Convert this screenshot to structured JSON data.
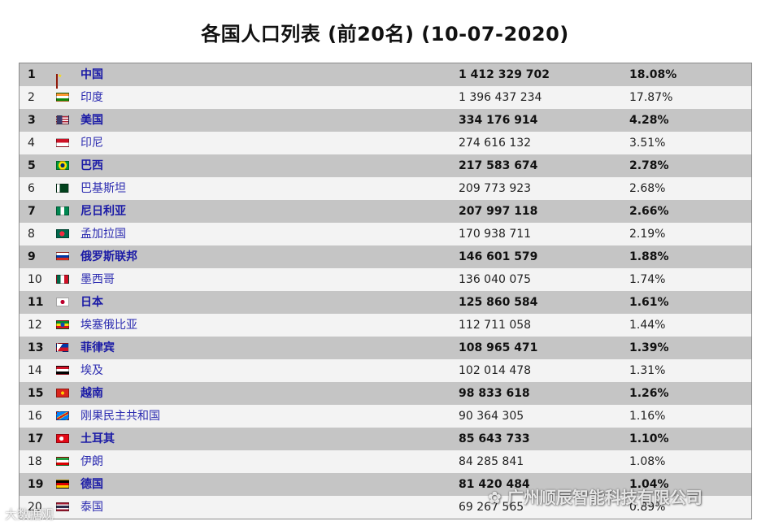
{
  "title": "各国人口列表 (前20名) (10-07-2020)",
  "rows": [
    {
      "rank": "1",
      "name": "中国",
      "population": "1 412 329 702",
      "percent": "18.08%",
      "flag": "cn"
    },
    {
      "rank": "2",
      "name": "印度",
      "population": "1 396 437 234",
      "percent": "17.87%",
      "flag": "in"
    },
    {
      "rank": "3",
      "name": "美国",
      "population": "334 176 914",
      "percent": "4.28%",
      "flag": "us"
    },
    {
      "rank": "4",
      "name": "印尼",
      "population": "274 616 132",
      "percent": "3.51%",
      "flag": "id"
    },
    {
      "rank": "5",
      "name": "巴西",
      "population": "217 583 674",
      "percent": "2.78%",
      "flag": "br"
    },
    {
      "rank": "6",
      "name": "巴基斯坦",
      "population": "209 773 923",
      "percent": "2.68%",
      "flag": "pk"
    },
    {
      "rank": "7",
      "name": "尼日利亚",
      "population": "207 997 118",
      "percent": "2.66%",
      "flag": "ng"
    },
    {
      "rank": "8",
      "name": "孟加拉国",
      "population": "170 938 711",
      "percent": "2.19%",
      "flag": "bd"
    },
    {
      "rank": "9",
      "name": "俄罗斯联邦",
      "population": "146 601 579",
      "percent": "1.88%",
      "flag": "ru"
    },
    {
      "rank": "10",
      "name": "墨西哥",
      "population": "136 040 075",
      "percent": "1.74%",
      "flag": "mx"
    },
    {
      "rank": "11",
      "name": "日本",
      "population": "125 860 584",
      "percent": "1.61%",
      "flag": "jp"
    },
    {
      "rank": "12",
      "name": "埃塞俄比亚",
      "population": "112 711 058",
      "percent": "1.44%",
      "flag": "et"
    },
    {
      "rank": "13",
      "name": "菲律宾",
      "population": "108 965 471",
      "percent": "1.39%",
      "flag": "ph"
    },
    {
      "rank": "14",
      "name": "埃及",
      "population": "102 014 478",
      "percent": "1.31%",
      "flag": "eg"
    },
    {
      "rank": "15",
      "name": "越南",
      "population": "98 833 618",
      "percent": "1.26%",
      "flag": "vn"
    },
    {
      "rank": "16",
      "name": "刚果民主共和国",
      "population": "90 364 305",
      "percent": "1.16%",
      "flag": "cd"
    },
    {
      "rank": "17",
      "name": "土耳其",
      "population": "85 643 733",
      "percent": "1.10%",
      "flag": "tr"
    },
    {
      "rank": "18",
      "name": "伊朗",
      "population": "84 285 841",
      "percent": "1.08%",
      "flag": "ir"
    },
    {
      "rank": "19",
      "name": "德国",
      "population": "81 420 484",
      "percent": "1.04%",
      "flag": "de"
    },
    {
      "rank": "20",
      "name": "泰国",
      "population": "69 267 565",
      "percent": "0.89%",
      "flag": "th"
    }
  ],
  "watermarks": {
    "right": "广州顺辰智能科技有限公司",
    "left": "大数据观"
  }
}
